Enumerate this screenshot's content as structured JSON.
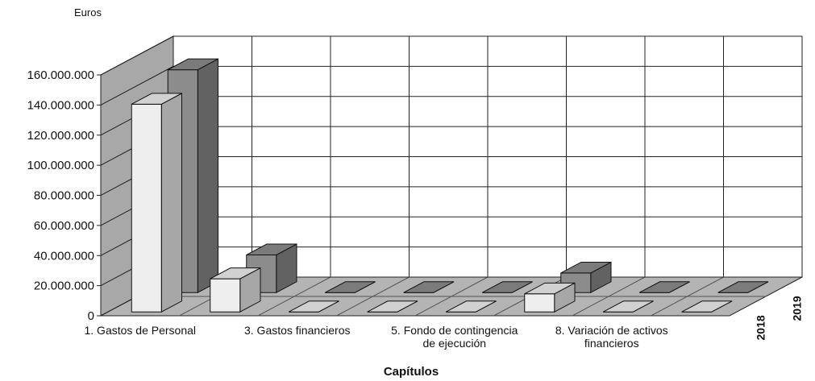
{
  "chart_data": {
    "type": "bar3d",
    "y_label": "Euros",
    "x_label": "Capítulos",
    "categories": [
      "1. Gastos de Personal",
      null,
      "3. Gastos financieros",
      null,
      "5. Fondo de contingencia\nde ejecución",
      null,
      "8. Variación de activos\nfinancieros",
      null
    ],
    "series": [
      {
        "name": "2018",
        "color": "#eeeeee",
        "values": [
          138000000,
          22000000,
          0,
          0,
          0,
          12000000,
          0,
          0
        ]
      },
      {
        "name": "2019",
        "color": "#8c8c8c",
        "values": [
          148000000,
          25000000,
          0,
          0,
          0,
          13000000,
          0,
          0
        ]
      }
    ],
    "ylim": [
      0,
      160000000
    ],
    "yticks": [
      0,
      {
        "value": 20000000,
        "label": "20.000.000"
      },
      {
        "value": 40000000,
        "label": "40.000.000"
      },
      {
        "value": 60000000,
        "label": "60.000.000"
      },
      {
        "value": 80000000,
        "label": "80.000.000"
      },
      {
        "value": 100000000,
        "label": "100.000.000"
      },
      {
        "value": 120000000,
        "label": "120.000.000"
      },
      {
        "value": 140000000,
        "label": "140.000.000"
      },
      {
        "value": 160000000,
        "label": "160.000.000"
      }
    ],
    "grid": true
  }
}
